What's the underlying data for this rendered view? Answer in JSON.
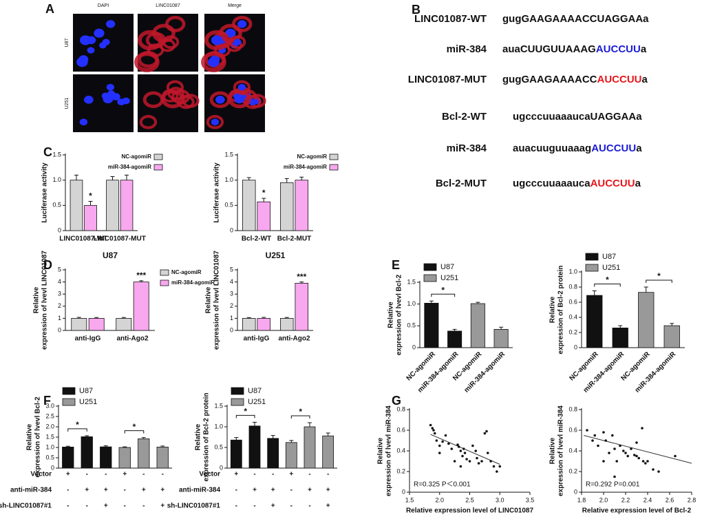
{
  "panel_labels": [
    "A",
    "B",
    "C",
    "D",
    "E",
    "F",
    "G"
  ],
  "microscopy": {
    "columns": [
      "DAPI",
      "LINC01087",
      "Merge"
    ],
    "rows": [
      "U87",
      "U251"
    ]
  },
  "sequences": [
    {
      "name": "LINC01087-WT",
      "parts": [
        {
          "text": "gugGAAGAAAACCUAGGAAa",
          "color": "#111111"
        }
      ]
    },
    {
      "name": "miR-384",
      "parts": [
        {
          "text": "auaCUUGUUAAAG",
          "color": "#111111"
        },
        {
          "text": "AUCCUU",
          "color": "#1a1ad6"
        },
        {
          "text": "a",
          "color": "#111111"
        }
      ]
    },
    {
      "name": "LINC01087-MUT",
      "parts": [
        {
          "text": "gugGAAGAAAACC",
          "color": "#111111"
        },
        {
          "text": "AUCCUU",
          "color": "#e8161b"
        },
        {
          "text": "a",
          "color": "#111111"
        }
      ]
    },
    {
      "name": "Bcl-2-WT",
      "parts": [
        {
          "text": "ugcccuuaaaucaUAGGAAa",
          "color": "#111111"
        }
      ]
    },
    {
      "name": "miR-384",
      "parts": [
        {
          "text": "auacuuguuaaag",
          "color": "#111111"
        },
        {
          "text": "AUCCUU",
          "color": "#1a1ad6"
        },
        {
          "text": "a",
          "color": "#111111"
        }
      ]
    },
    {
      "name": "Bcl-2-MUT",
      "parts": [
        {
          "text": "ugcccuuaaauca",
          "color": "#111111"
        },
        {
          "text": "AUCCUU",
          "color": "#e8161b"
        },
        {
          "text": "a",
          "color": "#111111"
        }
      ]
    }
  ],
  "chart_data": [
    {
      "type": "bar",
      "ylabel": [
        "Luciferase activity"
      ],
      "categories": [
        "LINC01087-WT",
        "LINC01087-MUT"
      ],
      "series": [
        {
          "name": "NC-agomiR",
          "color": "#d4d4d4",
          "values": [
            1.0,
            1.0
          ],
          "errors": [
            0.1,
            0.07
          ],
          "significance": [
            null,
            null
          ]
        },
        {
          "name": "miR-384-agomiR",
          "color": "#f7a8ee",
          "values": [
            0.5,
            1.0
          ],
          "errors": [
            0.08,
            0.1
          ],
          "significance": [
            "*",
            null
          ]
        }
      ],
      "ylim": [
        0,
        1.5
      ],
      "yticks": [
        0,
        0.5,
        {
          "value": 1,
          "label": "1.0"
        },
        1.5
      ],
      "legend": "upper right",
      "significance_style": "star"
    },
    {
      "type": "bar",
      "ylabel": [
        "Luciferase activity"
      ],
      "categories": [
        "Bcl-2-WT",
        "Bcl-2-MUT"
      ],
      "series": [
        {
          "name": "NC-agomiR",
          "color": "#d4d4d4",
          "values": [
            1.0,
            0.95
          ],
          "errors": [
            0.05,
            0.08
          ],
          "significance": [
            null,
            null
          ]
        },
        {
          "name": "miR-384-agomiR",
          "color": "#f7a8ee",
          "values": [
            0.57,
            1.0
          ],
          "errors": [
            0.07,
            0.06
          ],
          "significance": [
            "*",
            null
          ]
        }
      ],
      "ylim": [
        0,
        1.5
      ],
      "yticks": [
        0,
        0.5,
        {
          "value": 1,
          "label": "1.0"
        },
        1.5
      ],
      "legend": "upper right",
      "significance_style": "star"
    },
    {
      "type": "bar",
      "title": "U87",
      "ylabel": [
        "Relative",
        "expression of lvevl LINC01087"
      ],
      "categories": [
        "anti-IgG",
        "anti-Ago2"
      ],
      "series": [
        {
          "name": "NC-agomiR",
          "color": "#d4d4d4",
          "values": [
            1.0,
            1.0
          ],
          "errors": [
            0.08,
            0.07
          ],
          "significance": [
            null,
            null
          ]
        },
        {
          "name": "miR-384-agomiR",
          "color": "#f7a8ee",
          "values": [
            1.0,
            4.0
          ],
          "errors": [
            0.07,
            0.1
          ],
          "significance": [
            null,
            "***"
          ]
        }
      ],
      "ylim": [
        0,
        5
      ],
      "yticks": [
        0,
        1,
        2,
        3,
        4,
        5
      ],
      "legend": "right",
      "significance_style": "star"
    },
    {
      "type": "bar",
      "title": "U251",
      "ylabel": [
        "Relative",
        "expression of lvevl LINC01087"
      ],
      "categories": [
        "anti-IgG",
        "anti-Ago2"
      ],
      "series": [
        {
          "color": "#d4d4d4",
          "values": [
            1.0,
            1.0
          ],
          "errors": [
            0.06,
            0.07
          ],
          "significance": [
            null,
            null
          ]
        },
        {
          "color": "#f7a8ee",
          "values": [
            1.0,
            3.9
          ],
          "errors": [
            0.08,
            0.1
          ],
          "significance": [
            null,
            "***"
          ]
        }
      ],
      "ylim": [
        0,
        5
      ],
      "yticks": [
        0,
        1,
        2,
        3,
        4,
        5
      ],
      "significance_style": "star"
    },
    {
      "type": "bar",
      "ylabel": [
        "Relative",
        "expression of lvevl Bcl-2"
      ],
      "categories": [
        "NC-agomiR",
        "miR-384-agomiR",
        "NC-agomiR",
        "miR-384-agomiR"
      ],
      "series": [
        {
          "name": "U87",
          "color": "#111111",
          "values": [
            1.02,
            0.38,
            null,
            null
          ],
          "errors": [
            0.05,
            0.04,
            null,
            null
          ],
          "significance": [
            null,
            "*",
            null,
            null
          ]
        },
        {
          "name": "U251",
          "color": "#999999",
          "values": [
            null,
            null,
            1.01,
            0.42
          ],
          "errors": [
            null,
            null,
            0.03,
            0.05
          ],
          "significance": [
            null,
            null,
            null,
            null
          ]
        }
      ],
      "ylim": [
        0,
        1.5
      ],
      "yticks": [
        0,
        0.5,
        {
          "value": 1,
          "label": "1.0"
        },
        1.5
      ],
      "legend": "upper left",
      "significance_style": "bracket",
      "xlabel_rotation": -45
    },
    {
      "type": "bar",
      "ylabel": [
        "Relative",
        "expression of Bcl-2 protein"
      ],
      "categories": [
        "NC-agomiR",
        "miR-384-agomiR",
        "NC-agomiR",
        "miR-384-agomiR"
      ],
      "series": [
        {
          "name": "U87",
          "color": "#111111",
          "values": [
            0.69,
            0.26,
            null,
            null
          ],
          "errors": [
            0.06,
            0.03,
            null,
            null
          ],
          "significance": [
            null,
            "*",
            null,
            null
          ]
        },
        {
          "name": "U251",
          "color": "#999999",
          "values": [
            null,
            null,
            0.73,
            0.29
          ],
          "errors": [
            null,
            null,
            0.07,
            0.03
          ],
          "significance": [
            null,
            null,
            null,
            "*"
          ]
        }
      ],
      "ylim": [
        0,
        1
      ],
      "yticks": [
        0,
        0.2,
        0.4,
        0.6,
        0.8,
        {
          "value": 1,
          "label": "1.0"
        }
      ],
      "legend": "upper left",
      "significance_style": "bracket",
      "xlabel_rotation": -45
    },
    {
      "type": "bar",
      "ylabel": [
        "Relative",
        "expression of lvevl Bcl-2"
      ],
      "categories": [
        null,
        null,
        null,
        null,
        null,
        null
      ],
      "series": [
        {
          "name": "U87",
          "color": "#111111",
          "values": [
            1.02,
            1.52,
            1.03,
            null,
            null,
            null
          ],
          "errors": [
            0.04,
            0.05,
            0.05,
            null,
            null,
            null
          ],
          "significance": [
            null,
            "*",
            null,
            null,
            null,
            null
          ]
        },
        {
          "name": "U251",
          "color": "#999999",
          "values": [
            null,
            null,
            null,
            1.0,
            1.42,
            1.02
          ],
          "errors": [
            null,
            null,
            null,
            0.03,
            0.06,
            0.05
          ],
          "significance": [
            null,
            null,
            null,
            null,
            "*",
            null
          ]
        }
      ],
      "ylim": [
        0,
        3
      ],
      "yticks": [
        0,
        0.5,
        {
          "value": 1,
          "label": "1.0"
        },
        1.5,
        {
          "value": 2,
          "label": "2.0"
        },
        2.5,
        {
          "value": 3,
          "label": "3.0"
        }
      ],
      "legend": "upper left",
      "significance_style": "bracket",
      "conditions": [
        {
          "name": "Vector",
          "marks": [
            "+",
            "-",
            "-",
            "+",
            "-",
            "-"
          ]
        },
        {
          "name": "anti-miR-384",
          "marks": [
            "-",
            "+",
            "+",
            "-",
            "+",
            "+"
          ]
        },
        {
          "name": "sh-LINC01087#1",
          "marks": [
            "-",
            "-",
            "+",
            "-",
            "-",
            "+"
          ]
        }
      ]
    },
    {
      "type": "bar",
      "ylabel": [
        "Relative",
        "expression of Bcl-2 protein"
      ],
      "categories": [
        null,
        null,
        null,
        null,
        null,
        null
      ],
      "series": [
        {
          "name": "U87",
          "color": "#111111",
          "values": [
            0.68,
            1.02,
            0.72,
            null,
            null,
            null
          ],
          "errors": [
            0.06,
            0.09,
            0.07,
            null,
            null,
            null
          ],
          "significance": [
            null,
            "*",
            null,
            null,
            null,
            null
          ]
        },
        {
          "name": "U251",
          "color": "#999999",
          "values": [
            null,
            null,
            null,
            0.62,
            1.0,
            0.78
          ],
          "errors": [
            null,
            null,
            null,
            0.05,
            0.1,
            0.07
          ],
          "significance": [
            null,
            null,
            null,
            null,
            "*",
            null
          ]
        }
      ],
      "ylim": [
        0,
        1.5
      ],
      "yticks": [
        0,
        0.5,
        {
          "value": 1,
          "label": "1.0"
        },
        1.5
      ],
      "legend": "upper left",
      "significance_style": "bracket",
      "conditions": [
        {
          "name": "Vector",
          "marks": [
            "+",
            "-",
            "-",
            "+",
            "-",
            "-"
          ]
        },
        {
          "name": "anti-miR-384",
          "marks": [
            "-",
            "+",
            "+",
            "-",
            "+",
            "+"
          ]
        },
        {
          "name": "sh-LINC01087#1",
          "marks": [
            "-",
            "-",
            "+",
            "-",
            "-",
            "+"
          ]
        }
      ]
    },
    {
      "type": "scatter",
      "xlabel": "Relative expression level of LINC01087",
      "ylabel": [
        "Relative",
        "expression of lvevl miR-384"
      ],
      "annotation": "R=0.325 P＜0.001",
      "x": [
        1.85,
        1.88,
        1.9,
        1.92,
        1.95,
        2.0,
        2.05,
        2.1,
        2.15,
        2.2,
        2.25,
        2.3,
        2.32,
        2.35,
        2.38,
        2.4,
        2.42,
        2.45,
        2.5,
        2.55,
        2.6,
        2.62,
        2.65,
        2.7,
        2.75,
        2.78,
        2.8,
        2.85,
        2.9,
        2.95,
        3.0,
        2.0,
        2.35
      ],
      "values": [
        0.65,
        0.62,
        0.6,
        0.57,
        0.5,
        0.45,
        0.49,
        0.55,
        0.47,
        0.42,
        0.3,
        0.46,
        0.44,
        0.4,
        0.35,
        0.42,
        0.38,
        0.32,
        0.3,
        0.45,
        0.4,
        0.33,
        0.28,
        0.3,
        0.57,
        0.59,
        0.38,
        0.3,
        0.25,
        0.2,
        0.25,
        0.38,
        0.25
      ],
      "color": "#111111",
      "trendline": {
        "x": [
          1.85,
          3.0
        ],
        "y": [
          0.56,
          0.27
        ]
      },
      "xlim": [
        1.5,
        3.5
      ],
      "xticks": [
        1.5,
        {
          "value": 2,
          "label": "2.0"
        },
        2.5,
        {
          "value": 3,
          "label": "3.0"
        },
        3.5
      ],
      "ylim": [
        0,
        0.8
      ],
      "yticks": [
        0,
        0.2,
        0.4,
        0.6,
        0.8
      ]
    },
    {
      "type": "scatter",
      "xlabel": "Relative expression level of Bcl-2",
      "ylabel": [
        "Relative",
        "expression of lvevl miR-384"
      ],
      "annotation": "R=0.292 P=0.001",
      "x": [
        1.85,
        1.9,
        1.92,
        1.95,
        2.0,
        2.02,
        2.05,
        2.08,
        2.1,
        2.12,
        2.15,
        2.18,
        2.2,
        2.22,
        2.25,
        2.28,
        2.3,
        2.32,
        2.35,
        2.36,
        2.38,
        2.4,
        2.45,
        2.5,
        2.1,
        2.65,
        2.3,
        2.0
      ],
      "values": [
        0.6,
        0.5,
        0.55,
        0.45,
        0.58,
        0.5,
        0.38,
        0.55,
        0.42,
        0.3,
        0.45,
        0.4,
        0.38,
        0.35,
        0.42,
        0.36,
        0.35,
        0.33,
        0.62,
        0.3,
        0.28,
        0.3,
        0.22,
        0.2,
        0.15,
        0.35,
        0.48,
        0.3
      ],
      "color": "#111111",
      "trendline": {
        "x": [
          1.82,
          2.8
        ],
        "y": [
          0.55,
          0.28
        ]
      },
      "xlim": [
        1.8,
        2.8
      ],
      "xticks": [
        1.8,
        {
          "value": 2,
          "label": "2.0"
        },
        2.2,
        2.4,
        2.6,
        2.8
      ],
      "ylim": [
        0,
        0.8
      ],
      "yticks": [
        0,
        0.2,
        0.4,
        0.6,
        0.8
      ]
    }
  ]
}
